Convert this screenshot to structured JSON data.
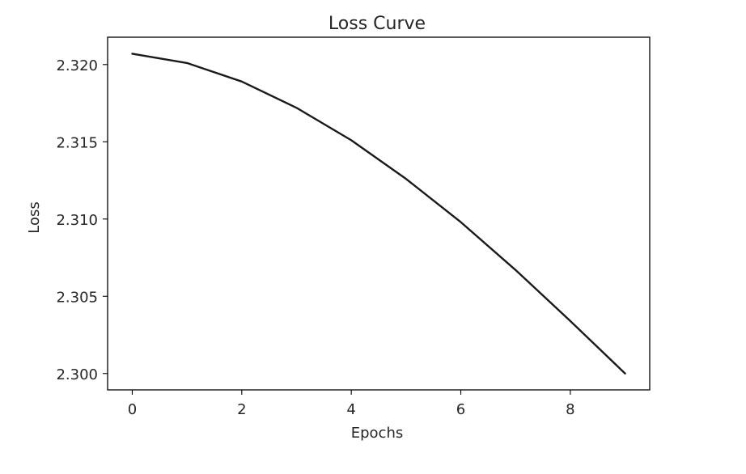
{
  "chart_data": {
    "type": "line",
    "title": "Loss Curve",
    "xlabel": "Epochs",
    "ylabel": "Loss",
    "xlim": [
      -0.45,
      9.45
    ],
    "ylim": [
      2.29894,
      2.32177
    ],
    "xticks": [
      0,
      2,
      4,
      6,
      8
    ],
    "yticks": [
      2.3,
      2.305,
      2.31,
      2.315,
      2.32
    ],
    "xtick_labels": [
      "0",
      "2",
      "4",
      "6",
      "8"
    ],
    "ytick_labels": [
      "2.300",
      "2.305",
      "2.310",
      "2.315",
      "2.320"
    ],
    "grid": false,
    "legend": "none",
    "series": [
      {
        "color": "#1a1a1a",
        "x": [
          0,
          1,
          2,
          3,
          4,
          5,
          6,
          7,
          8,
          9
        ],
        "y": [
          2.3207,
          2.3201,
          2.3189,
          2.3172,
          2.3151,
          2.3126,
          2.3098,
          2.3067,
          2.3034,
          2.3
        ]
      }
    ]
  }
}
